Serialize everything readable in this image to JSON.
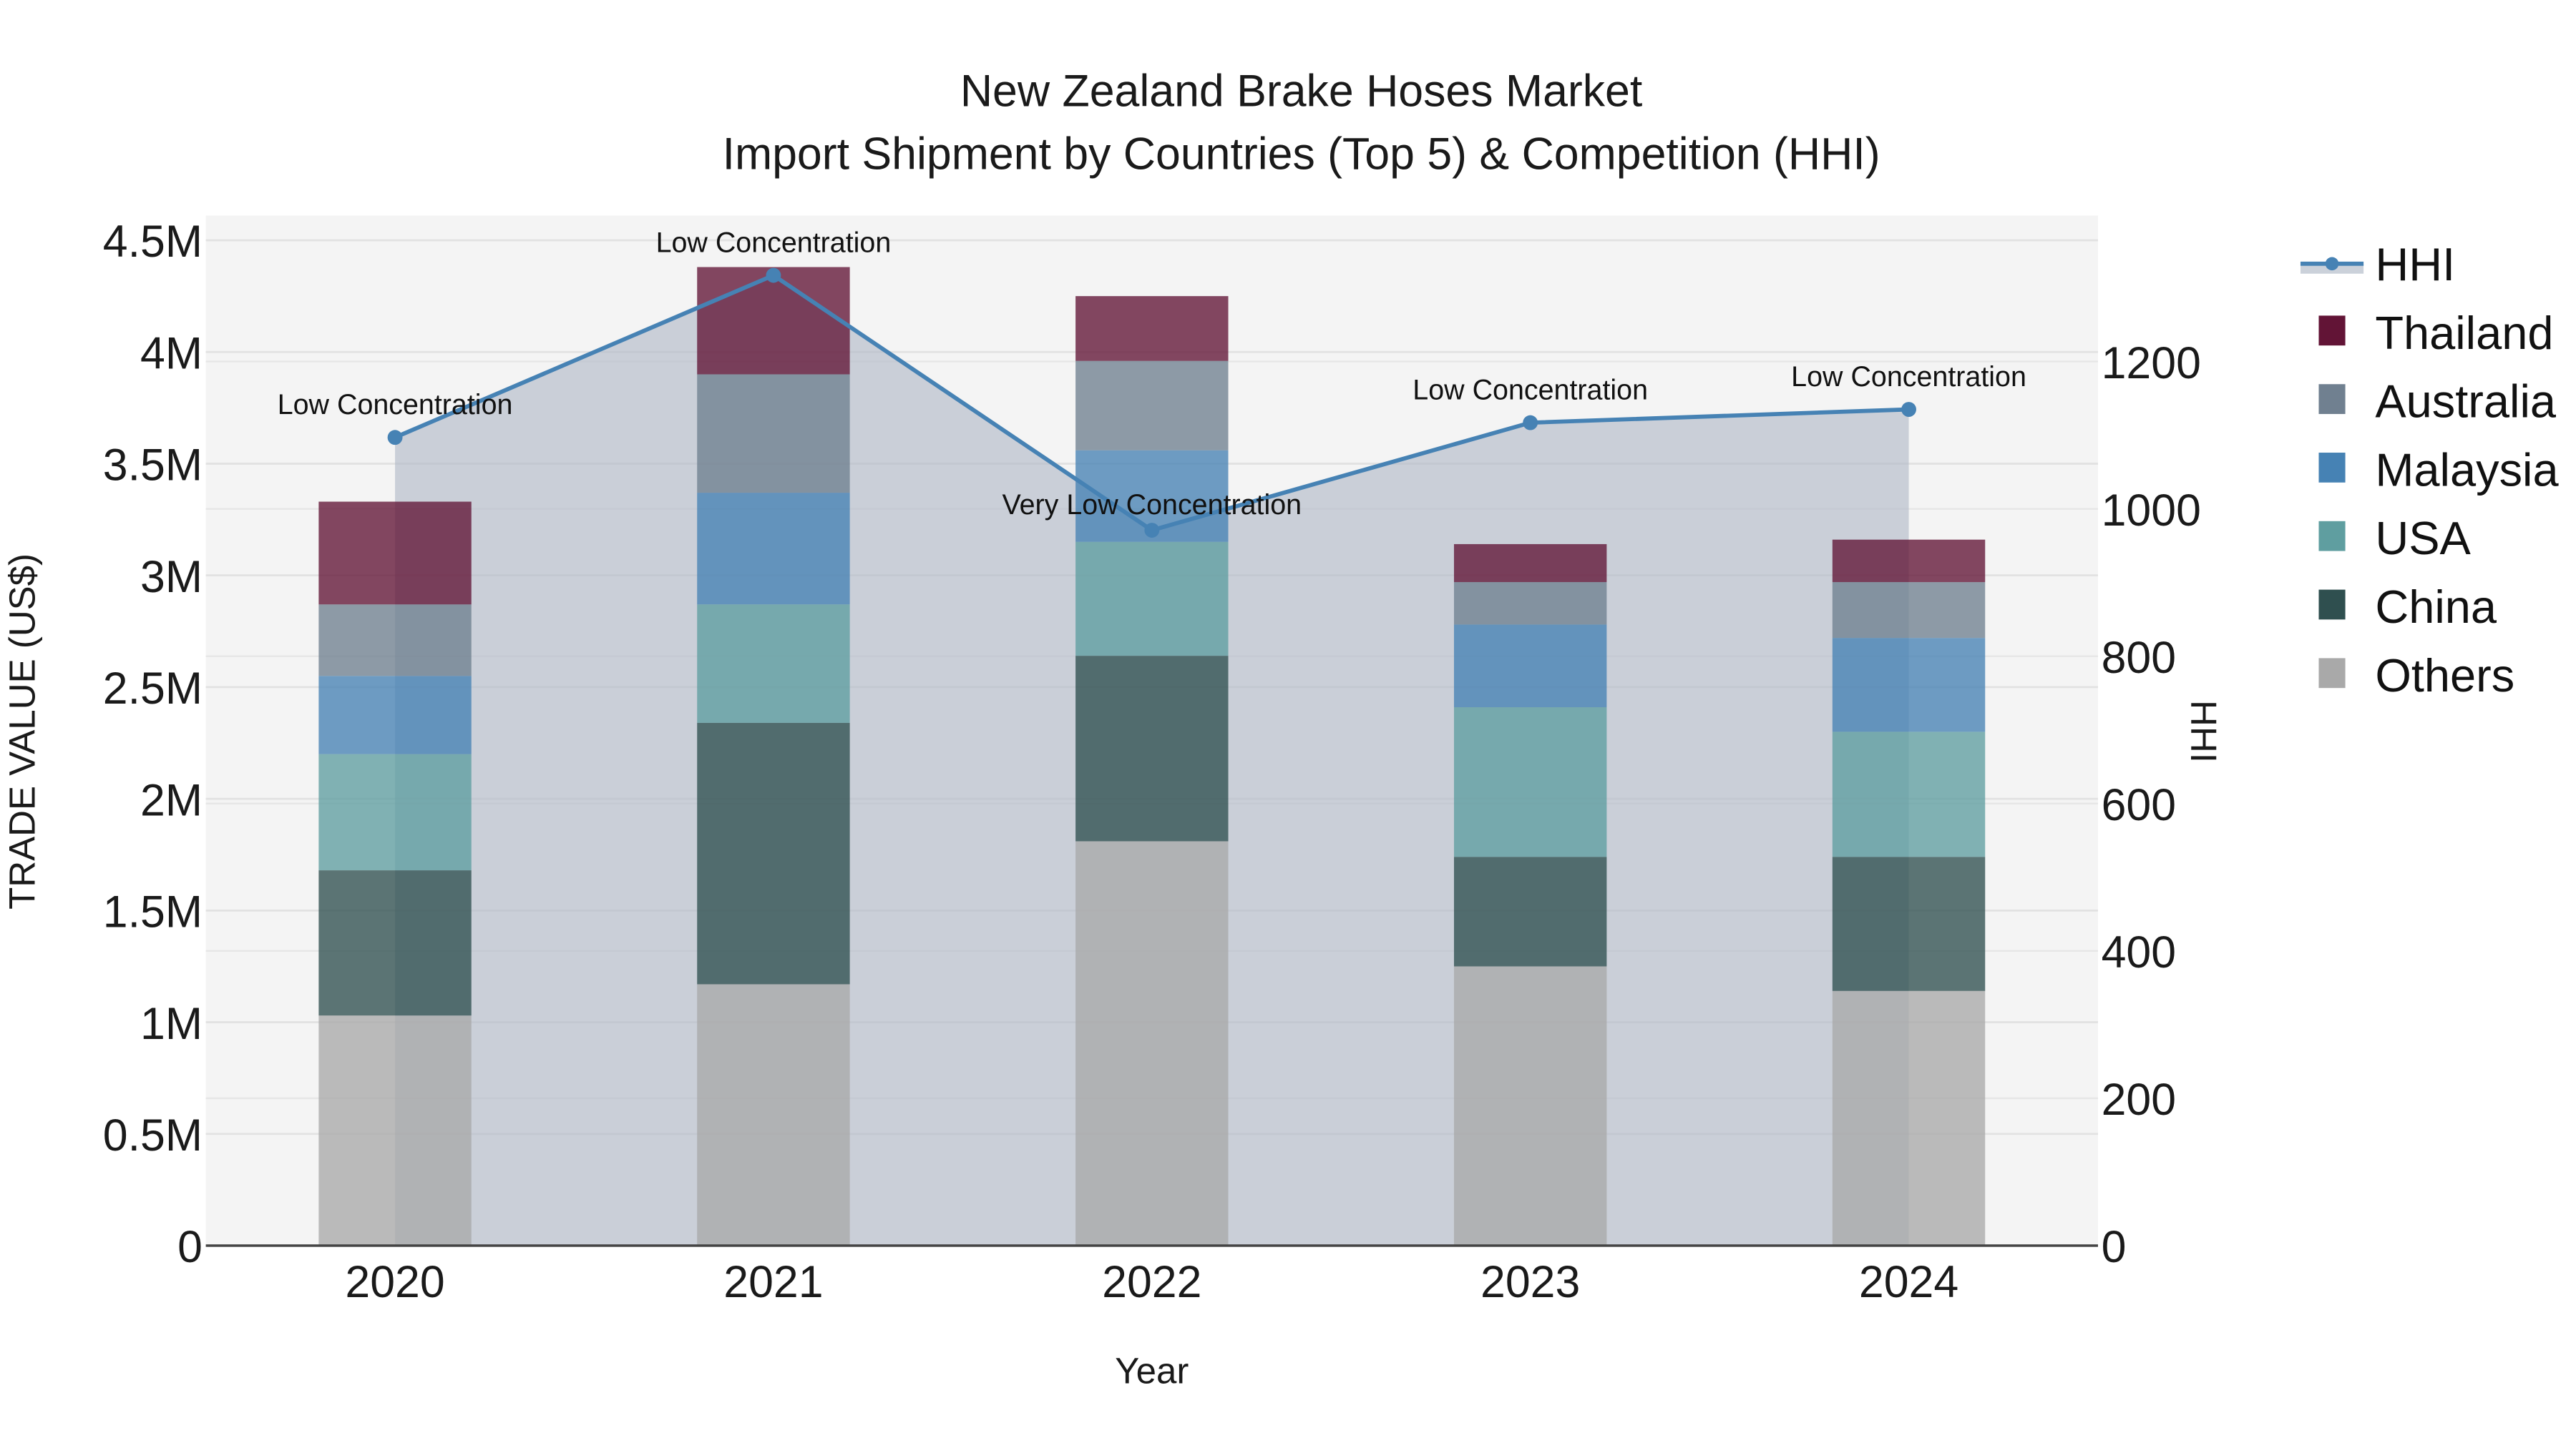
{
  "title": {
    "line1": "New Zealand Brake Hoses Market",
    "line2": "Import Shipment by Countries (Top 5) & Competition (HHI)"
  },
  "axes": {
    "x_title": "Year",
    "y_left_title": "TRADE VALUE (US$)",
    "y_right_title": "HHI",
    "y_left_ticks": [
      "0",
      "0.5M",
      "1M",
      "1.5M",
      "2M",
      "2.5M",
      "3M",
      "3.5M",
      "4M",
      "4.5M"
    ],
    "y_right_ticks": [
      "0",
      "200",
      "400",
      "600",
      "800",
      "1000",
      "1200"
    ]
  },
  "legend": {
    "items": [
      {
        "label": "HHI",
        "type": "line",
        "color": "#4682b4"
      },
      {
        "label": "Thailand",
        "type": "bar",
        "color": "#621436"
      },
      {
        "label": "Australia",
        "type": "bar",
        "color": "#708090"
      },
      {
        "label": "Malaysia",
        "type": "bar",
        "color": "#4682b4"
      },
      {
        "label": "USA",
        "type": "bar",
        "color": "#5f9ea0"
      },
      {
        "label": "China",
        "type": "bar",
        "color": "#2f4f4f"
      },
      {
        "label": "Others",
        "type": "bar",
        "color": "#a9a9a9"
      }
    ]
  },
  "chart_data": {
    "type": "bar",
    "stacked": true,
    "title": "New Zealand Brake Hoses Market — Import Shipment by Countries (Top 5) & Competition (HHI)",
    "xlabel": "Year",
    "ylabel": "TRADE VALUE (US$)",
    "y2label": "HHI",
    "ylim": [
      0,
      4600000
    ],
    "y2lim": [
      0,
      1400
    ],
    "categories": [
      "2020",
      "2021",
      "2022",
      "2023",
      "2024"
    ],
    "series": [
      {
        "name": "Others",
        "color": "#a9a9a9",
        "values": [
          1030000,
          1170000,
          1810000,
          1250000,
          1140000
        ]
      },
      {
        "name": "China",
        "color": "#2f4f4f",
        "values": [
          650000,
          1170000,
          830000,
          490000,
          600000
        ]
      },
      {
        "name": "USA",
        "color": "#5f9ea0",
        "values": [
          520000,
          530000,
          510000,
          670000,
          560000
        ]
      },
      {
        "name": "Malaysia",
        "color": "#4682b4",
        "values": [
          350000,
          500000,
          410000,
          370000,
          420000
        ]
      },
      {
        "name": "Australia",
        "color": "#708090",
        "values": [
          320000,
          530000,
          400000,
          190000,
          250000
        ]
      },
      {
        "name": "Thailand",
        "color": "#621436",
        "values": [
          460000,
          480000,
          290000,
          170000,
          190000
        ]
      }
    ],
    "hhi": {
      "name": "HHI",
      "axis": "right",
      "color": "#4682b4",
      "values": [
        1097,
        1317,
        971,
        1117,
        1135
      ],
      "labels": [
        "Low Concentration",
        "Low Concentration",
        "Very Low Concentration",
        "Low Concentration",
        "Low Concentration"
      ]
    },
    "grid": true,
    "legend_position": "right"
  }
}
